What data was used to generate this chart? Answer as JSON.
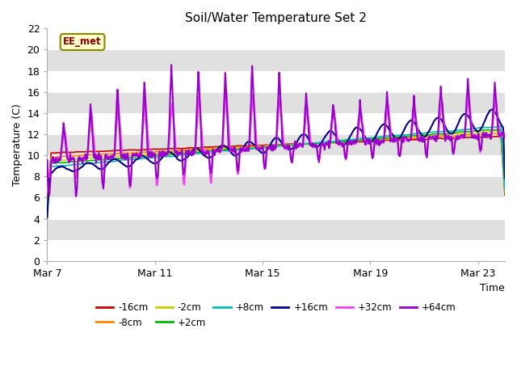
{
  "title": "Soil/Water Temperature Set 2",
  "xlabel": "Time",
  "ylabel": "Temperature (C)",
  "ylim": [
    0,
    22
  ],
  "yticks": [
    0,
    2,
    4,
    6,
    8,
    10,
    12,
    14,
    16,
    18,
    20,
    22
  ],
  "xtick_labels": [
    "Mar 7",
    "Mar 11",
    "Mar 15",
    "Mar 19",
    "Mar 23"
  ],
  "xtick_positions": [
    0,
    4,
    8,
    12,
    16
  ],
  "annotation_text": "EE_met",
  "background_color": "#ffffff",
  "plot_bg_color": "#e0e0e0",
  "white_band_color": "#f0f0f0",
  "series": [
    {
      "label": "-16cm",
      "color": "#cc0000",
      "base_start": 10.2,
      "base_end": 11.8,
      "noise_amp": 0.15
    },
    {
      "label": "-8cm",
      "color": "#ff8800",
      "base_start": 9.8,
      "base_end": 12.1,
      "noise_amp": 0.15
    },
    {
      "label": "-2cm",
      "color": "#cccc00",
      "base_start": 9.5,
      "base_end": 12.3,
      "noise_amp": 0.15
    },
    {
      "label": "+2cm",
      "color": "#00bb00",
      "base_start": 9.2,
      "base_end": 12.5,
      "noise_amp": 0.15
    },
    {
      "label": "+8cm",
      "color": "#00bbbb",
      "base_start": 8.9,
      "base_end": 12.8,
      "noise_amp": 0.15
    },
    {
      "label": "+16cm",
      "color": "#000088",
      "base_start": 8.5,
      "base_end": 13.5,
      "noise_amp": 0.3
    },
    {
      "label": "+32cm",
      "color": "#ee44ee",
      "base_start": 9.5,
      "base_end": 12.0,
      "noise_amp": 0.2
    },
    {
      "label": "+64cm",
      "color": "#9900cc",
      "base_start": 9.5,
      "base_end": 12.0,
      "noise_amp": 0.2
    }
  ],
  "n_days": 17,
  "pts_per_day": 48
}
